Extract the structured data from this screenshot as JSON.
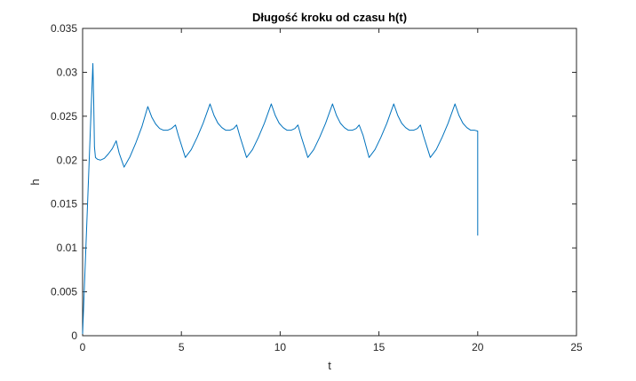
{
  "chart_data": {
    "type": "line",
    "title": "Długość kroku od czasu h(t)",
    "xlabel": "t",
    "ylabel": "h",
    "xlim": [
      0,
      25
    ],
    "ylim": [
      0,
      0.035
    ],
    "xticks": [
      0,
      5,
      10,
      15,
      20,
      25
    ],
    "yticks": [
      0,
      0.005,
      0.01,
      0.015,
      0.02,
      0.025,
      0.03,
      0.035
    ],
    "grid": false,
    "series": [
      {
        "color": "#0072BD",
        "x": [
          0,
          0.52,
          0.56,
          0.6,
          0.65,
          0.75,
          0.9,
          1.1,
          1.3,
          1.5,
          1.7,
          1.85,
          2.1,
          2.4,
          2.7,
          3.0,
          3.3,
          3.5,
          3.7,
          3.9,
          4.1,
          4.3,
          4.5,
          4.7,
          4.85,
          5.2,
          5.5,
          5.8,
          6.1,
          6.45,
          6.65,
          6.85,
          7.05,
          7.25,
          7.45,
          7.65,
          7.8,
          7.95,
          8.3,
          8.6,
          8.9,
          9.2,
          9.55,
          9.75,
          9.95,
          10.15,
          10.35,
          10.55,
          10.75,
          10.9,
          11.05,
          11.4,
          11.7,
          12.0,
          12.3,
          12.65,
          12.85,
          13.05,
          13.25,
          13.45,
          13.65,
          13.85,
          14.0,
          14.2,
          14.5,
          14.8,
          15.1,
          15.4,
          15.75,
          15.95,
          16.15,
          16.35,
          16.55,
          16.75,
          16.95,
          17.1,
          17.25,
          17.6,
          17.9,
          18.2,
          18.5,
          18.85,
          19.05,
          19.25,
          19.45,
          19.65,
          19.85,
          20.0,
          20.0
        ],
        "y": [
          0.0002,
          0.031,
          0.027,
          0.0215,
          0.0203,
          0.0201,
          0.02,
          0.0202,
          0.0207,
          0.0213,
          0.0222,
          0.0208,
          0.0192,
          0.0204,
          0.022,
          0.0238,
          0.0261,
          0.0249,
          0.0241,
          0.0236,
          0.0234,
          0.0234,
          0.0236,
          0.024,
          0.0228,
          0.0203,
          0.0212,
          0.0226,
          0.0242,
          0.0264,
          0.0251,
          0.0242,
          0.0237,
          0.0234,
          0.0234,
          0.0236,
          0.024,
          0.0228,
          0.0203,
          0.0212,
          0.0226,
          0.0242,
          0.0264,
          0.0251,
          0.0242,
          0.0237,
          0.0234,
          0.0234,
          0.0236,
          0.024,
          0.0228,
          0.0203,
          0.0212,
          0.0226,
          0.0242,
          0.0264,
          0.0251,
          0.0242,
          0.0237,
          0.0234,
          0.0234,
          0.0236,
          0.024,
          0.0228,
          0.0203,
          0.0212,
          0.0226,
          0.0242,
          0.0264,
          0.0251,
          0.0242,
          0.0237,
          0.0234,
          0.0234,
          0.0236,
          0.024,
          0.0228,
          0.0203,
          0.0212,
          0.0226,
          0.0242,
          0.0264,
          0.0251,
          0.0242,
          0.0237,
          0.0234,
          0.0234,
          0.0233,
          0.0114
        ]
      }
    ]
  }
}
